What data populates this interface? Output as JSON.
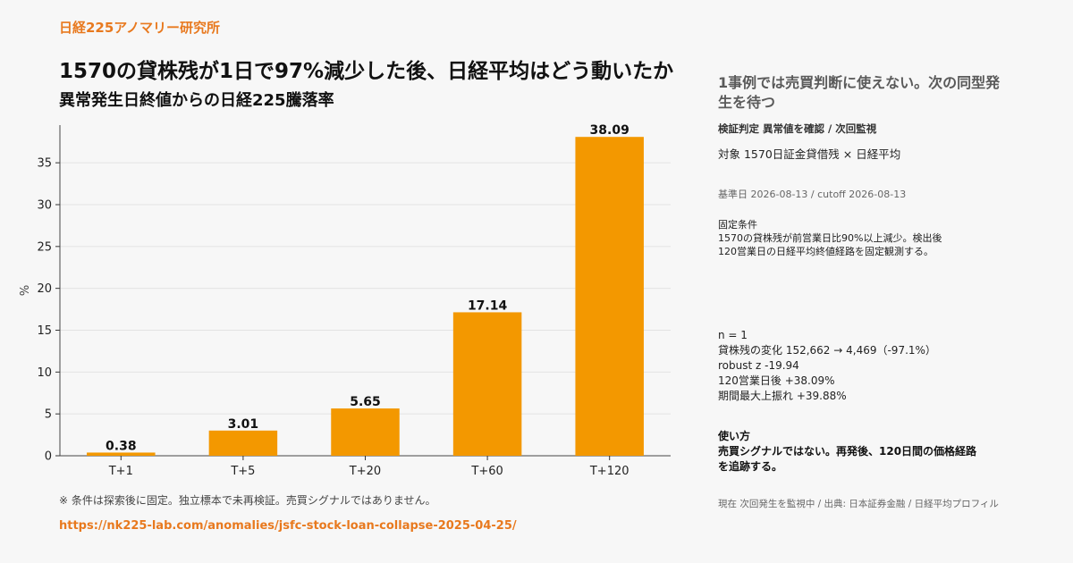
{
  "brand": "日経225アノマリー研究所",
  "title": "1570の貸株残が1日で97%減少した後、日経平均はどう動いたか",
  "subtitle": "異常発生日終値からの日経225騰落率",
  "footnote": "※ 条件は探索後に固定。独立標本で未再検証。売買シグナルではありません。",
  "url": "https://nk225-lab.com/anomalies/jsfc-stock-loan-collapse-2025-04-25/",
  "panel": {
    "heading": "1事例では売買判断に使えない。次の同型発生を待つ",
    "verdict": "検証判定  異常値を確認 / 次回監視",
    "target": "対象  1570日証金貸借残 × 日経平均",
    "dates": "基準日 2026-08-13 / cutoff 2026-08-13",
    "condition_title": "固定条件",
    "condition_text": "1570の貸株残が前営業日比90%以上減少。検出後120営業日の日経平均終値経路を固定観測する。",
    "stats": {
      "n": "n = 1",
      "loan_change": "貸株残の変化  152,662 → 4,469（-97.1%）",
      "robust_z": "robust z  -19.94",
      "after120": "120営業日後  +38.09%",
      "max_up": "期間最大上振れ  +39.88%"
    },
    "usage_title": "使い方",
    "usage_text": "売買シグナルではない。再発後、120日間の価格経路を追跡する。",
    "status": "現在  次回発生を監視中 / 出典: 日本証券金融 / 日経平均プロフィル"
  },
  "colors": {
    "bar": "#f39800",
    "accent": "#e8791e"
  },
  "chart_data": {
    "type": "bar",
    "categories": [
      "T+1",
      "T+5",
      "T+20",
      "T+60",
      "T+120"
    ],
    "values": [
      0.38,
      3.01,
      5.65,
      17.14,
      38.09
    ],
    "data_labels": [
      "0.38",
      "3.01",
      "5.65",
      "17.14",
      "38.09"
    ],
    "title": "異常発生日終値からの日経225騰落率",
    "xlabel": "",
    "ylabel": "%",
    "ylim": [
      0,
      39.5
    ],
    "yticks": [
      0,
      5,
      10,
      15,
      20,
      25,
      30,
      35
    ],
    "grid": "horizontal",
    "legend": "none"
  }
}
